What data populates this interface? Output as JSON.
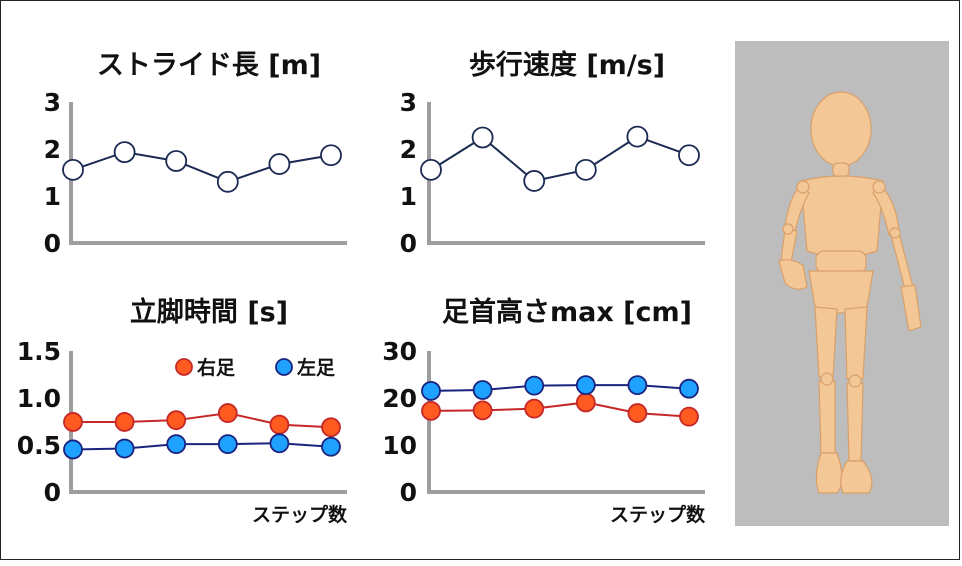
{
  "colors": {
    "navy": "#1b2a52",
    "right_fill": "#ff5a1f",
    "right_stroke": "#c62828",
    "left_fill": "#1ea1ff",
    "left_stroke": "#1a237e",
    "axis": "#9e9e9e",
    "figure_bg": "#bdbdbd",
    "mannequin": "#f3c796"
  },
  "figure": {
    "icon": "wooden-mannequin-walking"
  },
  "chart_data": [
    {
      "type": "line",
      "title": "ストライド長 [m]",
      "xlabel": "",
      "ylabel": "",
      "ylim": [
        0,
        3
      ],
      "yticks": [
        "0",
        "1",
        "2",
        "3"
      ],
      "series": [
        {
          "values": [
            1.65,
            2.05,
            1.85,
            1.38,
            1.78,
            1.98
          ]
        }
      ]
    },
    {
      "type": "line",
      "title": "歩行速度 [m/s]",
      "xlabel": "",
      "ylabel": "",
      "ylim": [
        0,
        3
      ],
      "yticks": [
        "0",
        "1",
        "2",
        "3"
      ],
      "series": [
        {
          "values": [
            1.65,
            2.38,
            1.4,
            1.65,
            2.4,
            1.98
          ]
        }
      ]
    },
    {
      "type": "line",
      "title": "立脚時間 [s]",
      "xlabel": "ステップ数",
      "ylabel": "",
      "ylim": [
        0,
        1.5
      ],
      "yticks": [
        "0",
        "0.5",
        "1.0",
        "1.5"
      ],
      "legend": "top-right",
      "series": [
        {
          "name": "右足",
          "values": [
            0.79,
            0.79,
            0.81,
            0.89,
            0.76,
            0.73
          ]
        },
        {
          "name": "左足",
          "values": [
            0.48,
            0.49,
            0.54,
            0.54,
            0.55,
            0.51
          ]
        }
      ]
    },
    {
      "type": "line",
      "title": "足首高さmax [cm]",
      "xlabel": "ステップ数",
      "ylabel": "",
      "ylim": [
        0,
        30
      ],
      "yticks": [
        "0",
        "10",
        "20",
        "30"
      ],
      "series": [
        {
          "name": "右足",
          "values": [
            18.3,
            18.4,
            18.8,
            20.2,
            17.8,
            17.0
          ]
        },
        {
          "name": "左足",
          "values": [
            22.8,
            23.0,
            24.0,
            24.1,
            24.1,
            23.3
          ]
        }
      ]
    }
  ]
}
